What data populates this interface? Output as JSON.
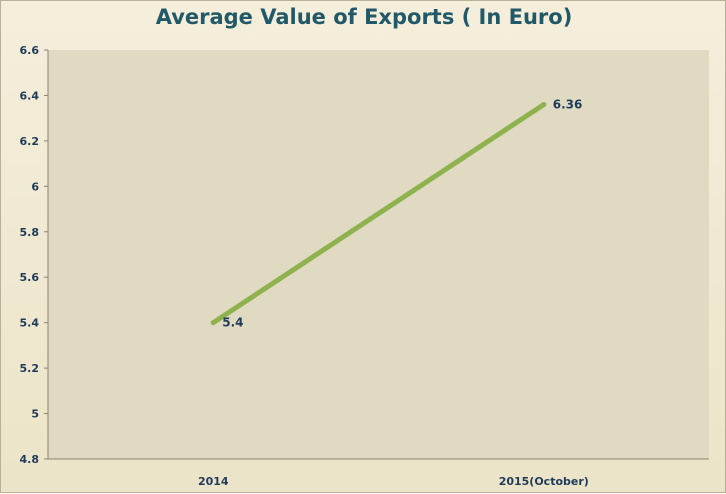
{
  "chart_data": {
    "type": "line",
    "title": "Average Value of Exports ( In Euro)",
    "xlabel": "",
    "ylabel": "",
    "categories": [
      "2014",
      "2015(October)"
    ],
    "series": [
      {
        "values": [
          5.4,
          6.36
        ],
        "data_labels": [
          "5.4",
          "6.36"
        ]
      }
    ],
    "ylim": [
      4.8,
      6.6
    ],
    "y_ticks": [
      "4.8",
      "5",
      "5.2",
      "5.4",
      "5.6",
      "5.8",
      "6",
      "6.2",
      "6.4",
      "6.6"
    ],
    "grid": false,
    "legend": "none",
    "colors": {
      "line": "#8fb24f",
      "plot_background": "#e0dac3",
      "frame_background": "#efe8d1",
      "title": "#215968",
      "text": "#1f3b5a"
    }
  }
}
